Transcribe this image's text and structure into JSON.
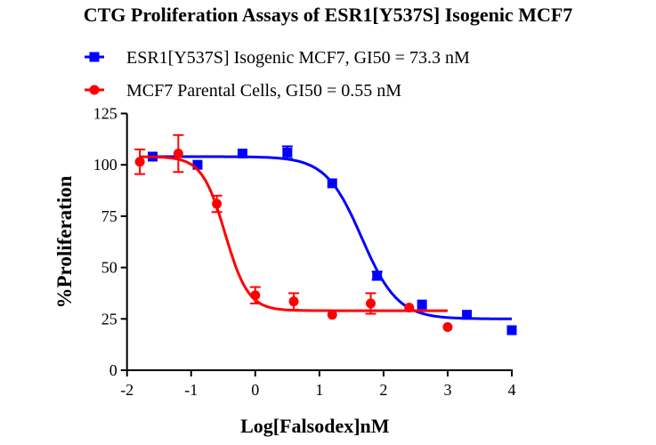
{
  "chart_data": {
    "type": "scatter",
    "title": "CTG Proliferation Assays of ESR1[Y537S] Isogenic MCF7",
    "xlabel": "Log[Falsodex]nM",
    "ylabel": "%Proliferation",
    "xlim": [
      -2,
      4
    ],
    "ylim": [
      0,
      125
    ],
    "xticks": [
      -2,
      -1,
      0,
      1,
      2,
      3,
      4
    ],
    "yticks": [
      0,
      25,
      50,
      75,
      100,
      125
    ],
    "grid": false,
    "legend_position": "top",
    "series": [
      {
        "name": "ESR1[Y537S] Isogenic MCF7, GI50 = 73.3 nM",
        "color": "#0000ff",
        "marker": "square",
        "x": [
          -1.6,
          -0.9,
          -0.2,
          0.5,
          1.2,
          1.9,
          2.6,
          3.3,
          4.0
        ],
        "y": [
          104,
          100,
          105.5,
          106,
          91,
          46,
          32,
          27,
          19.5
        ],
        "error": [
          0,
          0,
          0,
          3,
          0,
          2,
          0,
          0,
          0
        ],
        "fit": {
          "top": 104,
          "bottom": 25,
          "midpoint_log": 1.66,
          "hill": 1.55,
          "x_range": [
            -1.6,
            4.0
          ]
        }
      },
      {
        "name": "MCF7 Parental Cells, GI50 = 0.55 nM",
        "color": "#ff0000",
        "marker": "circle",
        "x": [
          -1.8,
          -1.2,
          -0.6,
          0.0,
          0.6,
          1.2,
          1.8,
          2.4,
          3.0
        ],
        "y": [
          101.5,
          105.5,
          81,
          36.5,
          33.5,
          27,
          32.5,
          30.5,
          21
        ],
        "error": [
          6,
          9,
          4,
          4,
          4,
          0,
          5,
          0,
          0
        ],
        "fit": {
          "top": 104,
          "bottom": 29,
          "midpoint_log": -0.47,
          "hill": 2.4,
          "x_range": [
            -1.8,
            3.0
          ]
        }
      }
    ]
  }
}
